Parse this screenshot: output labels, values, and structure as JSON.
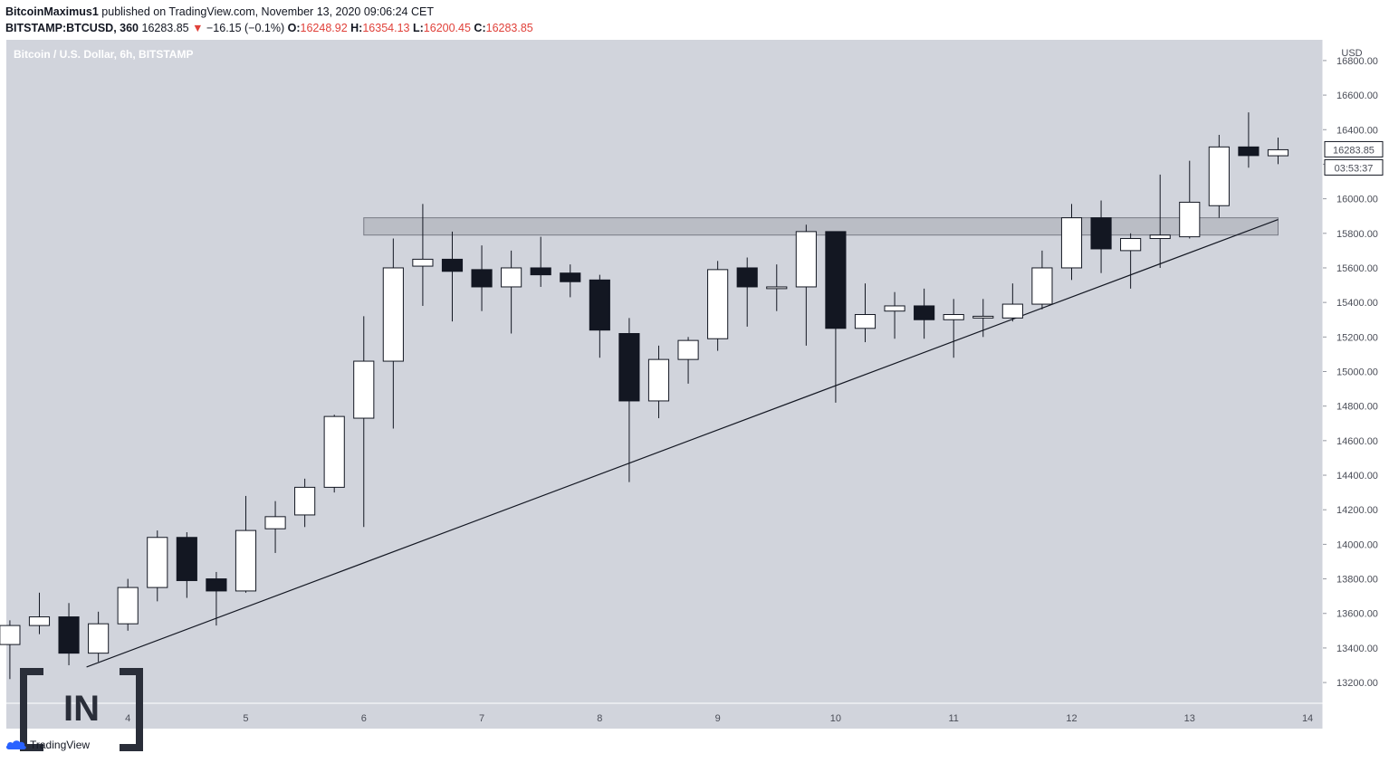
{
  "header": {
    "author": "BitcoinMaximus1",
    "published_text": " published on TradingView.com, November 13, 2020 09:06:24 CET",
    "symbol": "BITSTAMP:BTCUSD, 360",
    "last": "16283.85",
    "change_arrow": "▼",
    "change": "−16.15 (−0.1%)",
    "o_label": "O:",
    "o_value": "16248.92",
    "h_label": "H:",
    "h_value": "16354.13",
    "l_label": "L:",
    "l_value": "16200.45",
    "c_label": "C:",
    "c_value": "16283.85"
  },
  "chart_title": "Bitcoin / U.S. Dollar, 6h, BITSTAMP",
  "price_axis_unit": "USD",
  "price_label": "16283.85",
  "countdown_label": "03:53:37",
  "tradingview_label": "TradingView",
  "logo_text": "IN",
  "colors": {
    "background": "#d1d4dc",
    "up_fill": "#ffffff",
    "down_fill": "#131722",
    "wick": "#131722",
    "zone": "#b2b5be",
    "trendline": "#131722"
  },
  "chart_data": {
    "type": "candlestick",
    "title": "Bitcoin / U.S. Dollar, 6h, BITSTAMP",
    "ylabel": "USD",
    "y_ticks": [
      13200,
      13400,
      13600,
      13800,
      14000,
      14200,
      14400,
      14600,
      14800,
      15000,
      15200,
      15400,
      15600,
      15800,
      16000,
      16200,
      16400,
      16600,
      16800
    ],
    "y_tick_labels": [
      "13200.00",
      "13400.00",
      "13600.00",
      "13800.00",
      "14000.00",
      "14200.00",
      "14400.00",
      "14600.00",
      "14800.00",
      "15000.00",
      "15200.00",
      "15400.00",
      "15600.00",
      "15800.00",
      "16000.00",
      "16200.00",
      "16400.00",
      "16600.00",
      "16800.00"
    ],
    "ylim": [
      13080,
      16920
    ],
    "x_ticks": [
      4,
      5,
      6,
      7,
      8,
      9,
      10,
      11,
      12,
      13,
      14
    ],
    "x_tick_labels": [
      "4",
      "5",
      "6",
      "7",
      "8",
      "9",
      "10",
      "11",
      "12",
      "13",
      "14"
    ],
    "xlim": [
      2.97,
      14.13
    ],
    "candles": [
      {
        "t": 3.0,
        "o": 13420,
        "h": 13560,
        "l": 13220,
        "c": 13530
      },
      {
        "t": 3.25,
        "o": 13530,
        "h": 13720,
        "l": 13480,
        "c": 13580
      },
      {
        "t": 3.5,
        "o": 13580,
        "h": 13660,
        "l": 13300,
        "c": 13370
      },
      {
        "t": 3.75,
        "o": 13370,
        "h": 13610,
        "l": 13320,
        "c": 13540
      },
      {
        "t": 4.0,
        "o": 13540,
        "h": 13800,
        "l": 13500,
        "c": 13750
      },
      {
        "t": 4.25,
        "o": 13750,
        "h": 14080,
        "l": 13670,
        "c": 14040
      },
      {
        "t": 4.5,
        "o": 14040,
        "h": 14070,
        "l": 13690,
        "c": 13790
      },
      {
        "t": 4.75,
        "o": 13800,
        "h": 13840,
        "l": 13530,
        "c": 13730
      },
      {
        "t": 5.0,
        "o": 13730,
        "h": 14280,
        "l": 13720,
        "c": 14080
      },
      {
        "t": 5.25,
        "o": 14090,
        "h": 14250,
        "l": 13950,
        "c": 14160
      },
      {
        "t": 5.5,
        "o": 14170,
        "h": 14380,
        "l": 14100,
        "c": 14330
      },
      {
        "t": 5.75,
        "o": 14330,
        "h": 14750,
        "l": 14300,
        "c": 14740
      },
      {
        "t": 6.0,
        "o": 14730,
        "h": 15320,
        "l": 14100,
        "c": 15060
      },
      {
        "t": 6.25,
        "o": 15060,
        "h": 15770,
        "l": 14670,
        "c": 15600
      },
      {
        "t": 6.5,
        "o": 15610,
        "h": 15970,
        "l": 15380,
        "c": 15650
      },
      {
        "t": 6.75,
        "o": 15650,
        "h": 15810,
        "l": 15290,
        "c": 15580
      },
      {
        "t": 7.0,
        "o": 15590,
        "h": 15730,
        "l": 15350,
        "c": 15490
      },
      {
        "t": 7.25,
        "o": 15490,
        "h": 15700,
        "l": 15220,
        "c": 15600
      },
      {
        "t": 7.5,
        "o": 15600,
        "h": 15780,
        "l": 15490,
        "c": 15560
      },
      {
        "t": 7.75,
        "o": 15570,
        "h": 15620,
        "l": 15430,
        "c": 15520
      },
      {
        "t": 8.0,
        "o": 15530,
        "h": 15560,
        "l": 15080,
        "c": 15240
      },
      {
        "t": 8.25,
        "o": 15220,
        "h": 15310,
        "l": 14360,
        "c": 14830
      },
      {
        "t": 8.5,
        "o": 14830,
        "h": 15150,
        "l": 14730,
        "c": 15070
      },
      {
        "t": 8.75,
        "o": 15070,
        "h": 15200,
        "l": 14930,
        "c": 15180
      },
      {
        "t": 9.0,
        "o": 15190,
        "h": 15640,
        "l": 15120,
        "c": 15590
      },
      {
        "t": 9.25,
        "o": 15600,
        "h": 15660,
        "l": 15260,
        "c": 15490
      },
      {
        "t": 9.5,
        "o": 15480,
        "h": 15620,
        "l": 15350,
        "c": 15490
      },
      {
        "t": 9.75,
        "o": 15490,
        "h": 15850,
        "l": 15150,
        "c": 15810
      },
      {
        "t": 10.0,
        "o": 15810,
        "h": 15810,
        "l": 14820,
        "c": 15250
      },
      {
        "t": 10.25,
        "o": 15250,
        "h": 15510,
        "l": 15170,
        "c": 15330
      },
      {
        "t": 10.5,
        "o": 15350,
        "h": 15460,
        "l": 15190,
        "c": 15380
      },
      {
        "t": 10.75,
        "o": 15380,
        "h": 15480,
        "l": 15190,
        "c": 15300
      },
      {
        "t": 11.0,
        "o": 15300,
        "h": 15420,
        "l": 15080,
        "c": 15330
      },
      {
        "t": 11.25,
        "o": 15310,
        "h": 15420,
        "l": 15200,
        "c": 15320
      },
      {
        "t": 11.5,
        "o": 15310,
        "h": 15510,
        "l": 15290,
        "c": 15390
      },
      {
        "t": 11.75,
        "o": 15390,
        "h": 15700,
        "l": 15360,
        "c": 15600
      },
      {
        "t": 12.0,
        "o": 15600,
        "h": 15970,
        "l": 15530,
        "c": 15890
      },
      {
        "t": 12.25,
        "o": 15890,
        "h": 15990,
        "l": 15570,
        "c": 15710
      },
      {
        "t": 12.5,
        "o": 15700,
        "h": 15800,
        "l": 15480,
        "c": 15770
      },
      {
        "t": 12.75,
        "o": 15770,
        "h": 16140,
        "l": 15600,
        "c": 15790
      },
      {
        "t": 13.0,
        "o": 15780,
        "h": 16220,
        "l": 15770,
        "c": 15980
      },
      {
        "t": 13.25,
        "o": 15960,
        "h": 16370,
        "l": 15890,
        "c": 16300
      },
      {
        "t": 13.5,
        "o": 16300,
        "h": 16500,
        "l": 16180,
        "c": 16250
      },
      {
        "t": 13.75,
        "o": 16248.92,
        "h": 16354.13,
        "l": 16200.45,
        "c": 16283.85
      }
    ],
    "resistance_zone": {
      "x_start": 6.0,
      "x_end": 13.75,
      "y_low": 15790,
      "y_high": 15890
    },
    "trendline": {
      "x1": 3.65,
      "y1": 13290,
      "x2": 13.75,
      "y2": 15880
    },
    "grid": false
  }
}
